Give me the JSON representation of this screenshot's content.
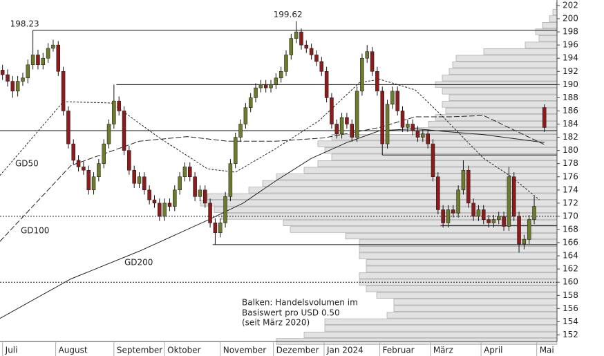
{
  "chart_data": {
    "type": "candlestick",
    "xlim": [
      -1,
      219
    ],
    "ylim": [
      151,
      203
    ],
    "yticks": [
      152,
      154,
      156,
      158,
      160,
      162,
      164,
      166,
      168,
      170,
      172,
      174,
      176,
      178,
      180,
      182,
      184,
      186,
      188,
      190,
      192,
      194,
      196,
      198,
      200,
      202
    ],
    "xticks": [
      {
        "value": 0,
        "label": "Juli"
      },
      {
        "value": 21,
        "label": "August"
      },
      {
        "value": 44,
        "label": "September"
      },
      {
        "value": 64,
        "label": "Oktober"
      },
      {
        "value": 86,
        "label": "November"
      },
      {
        "value": 107,
        "label": "Dezember"
      },
      {
        "value": 127,
        "label": "Jan 2024"
      },
      {
        "value": 149,
        "label": "Februar"
      },
      {
        "value": 169,
        "label": "März"
      },
      {
        "value": 189,
        "label": "April"
      },
      {
        "value": 211,
        "label": "Mai"
      }
    ],
    "up_color": "#6e7a2c",
    "down_color": "#8c1c1c",
    "x": [
      0,
      2,
      4,
      6,
      8,
      10,
      12,
      14,
      16,
      18,
      20,
      22,
      24,
      26,
      28,
      30,
      32,
      34,
      36,
      38,
      40,
      42,
      44,
      46,
      48,
      50,
      52,
      54,
      56,
      58,
      60,
      62,
      64,
      66,
      68,
      70,
      72,
      74,
      76,
      78,
      80,
      82,
      84,
      86,
      88,
      90,
      92,
      94,
      96,
      98,
      100,
      102,
      104,
      106,
      108,
      110,
      112,
      114,
      116,
      118,
      120,
      122,
      124,
      126,
      128,
      130,
      132,
      134,
      136,
      138,
      140,
      142,
      144,
      146,
      148,
      150,
      152,
      154,
      156,
      158,
      160,
      162,
      164,
      166,
      168,
      170,
      172,
      174,
      176,
      178,
      180,
      182,
      184,
      186,
      188,
      190,
      192,
      194,
      196,
      198,
      200,
      202,
      204,
      206,
      208,
      210,
      214
    ],
    "open": [
      192.2,
      191.5,
      190.5,
      189,
      190.5,
      191,
      193,
      194.5,
      193,
      194,
      195.5,
      196,
      192,
      186,
      181,
      178.5,
      177.5,
      177,
      174,
      176,
      178,
      181,
      184,
      187.5,
      186,
      180,
      177,
      175,
      176,
      174,
      172.5,
      172,
      170,
      172,
      171.5,
      174,
      176,
      177.5,
      176,
      173,
      174,
      172,
      169,
      167.5,
      169,
      173,
      178,
      182,
      184,
      186.5,
      188,
      189.5,
      190,
      189.5,
      190,
      191,
      192,
      194.5,
      197,
      198,
      196,
      195.5,
      194.5,
      193.5,
      192,
      188,
      184,
      182.5,
      185,
      184,
      182,
      189,
      194,
      195,
      192,
      189,
      181,
      187,
      189,
      186,
      183.5,
      184,
      183,
      182,
      182.5,
      181,
      176,
      171,
      169,
      171,
      170.5,
      174,
      177,
      172,
      170,
      171,
      169.5,
      169,
      169.5,
      170,
      168.5,
      176,
      170,
      165.8,
      166.5,
      169.5,
      186.5
    ],
    "high": [
      193,
      192.3,
      191.3,
      191.3,
      191.8,
      193.8,
      198.23,
      195.3,
      194.8,
      196.3,
      196.8,
      196.6,
      192.7,
      186.7,
      181.7,
      179.3,
      178.3,
      177.7,
      176.7,
      178.7,
      181.7,
      184.7,
      190,
      188.2,
      186.7,
      180.7,
      177.7,
      176.7,
      176.7,
      174.7,
      173.2,
      172.7,
      172.7,
      172.7,
      174.7,
      176.7,
      178.2,
      178.2,
      176.7,
      174.7,
      174.7,
      172.7,
      169.7,
      169.7,
      173.7,
      178.7,
      182.7,
      184.7,
      187.2,
      188.7,
      190.2,
      190.7,
      190.7,
      190.7,
      191.7,
      192.7,
      195.2,
      197.7,
      199.62,
      198.5,
      196.7,
      196.2,
      195.2,
      194.2,
      192.7,
      188.7,
      184.7,
      185.7,
      185.7,
      184.7,
      189.7,
      194.7,
      196,
      195.7,
      192.7,
      189.7,
      187.7,
      189.7,
      189.7,
      186.7,
      184.7,
      184.7,
      183.7,
      183.2,
      183.2,
      181.7,
      176.7,
      171.7,
      171.7,
      171.7,
      174.7,
      178.5,
      177.7,
      172.7,
      171.7,
      171.7,
      170.2,
      170.2,
      170.7,
      170.7,
      177.5,
      176.7,
      170.7,
      167.2,
      170.2,
      173,
      187
    ],
    "low": [
      190.7,
      189.7,
      188,
      188.2,
      189.8,
      190.2,
      192.3,
      192.3,
      192.3,
      193.3,
      195,
      191.3,
      185.3,
      180.3,
      177.8,
      176.8,
      176.3,
      173.3,
      173.3,
      175.3,
      177.3,
      180.3,
      183.3,
      185.3,
      179.3,
      176.3,
      174.3,
      174.3,
      173.3,
      171.8,
      171.3,
      169.3,
      169.3,
      170.8,
      170.8,
      173.3,
      175.3,
      175.3,
      172.3,
      172.3,
      171.3,
      168.3,
      165.7,
      166.8,
      168.3,
      172.3,
      177.3,
      181.3,
      183.3,
      185.8,
      187.3,
      188.8,
      188.8,
      188.8,
      189.3,
      190.3,
      191.3,
      193.8,
      196.3,
      195.3,
      194.8,
      193.8,
      192.8,
      191.3,
      187.3,
      183.3,
      181.8,
      181.8,
      183.3,
      181.3,
      181.3,
      188.3,
      193.3,
      191.3,
      188.3,
      179.3,
      180.3,
      186.3,
      185.3,
      182.8,
      182.8,
      182.3,
      181.3,
      181.3,
      180.3,
      175.3,
      170.3,
      168.3,
      168.3,
      169.8,
      169.8,
      173.3,
      171.3,
      169.3,
      169.3,
      168.8,
      168.3,
      168.3,
      168.8,
      167.8,
      167.8,
      169.3,
      164.5,
      165,
      165.8,
      168.8,
      182.8
    ],
    "close": [
      191.5,
      190.5,
      189,
      190.5,
      191,
      193,
      194.5,
      193,
      194,
      195.5,
      196,
      192,
      186,
      181,
      178.5,
      177.5,
      177,
      174,
      176,
      178,
      181,
      184,
      187.5,
      186,
      180,
      177,
      175,
      176,
      174,
      172.5,
      172,
      170,
      172,
      171.5,
      174,
      176,
      177.5,
      176,
      173,
      174,
      172,
      169,
      167.5,
      169,
      173,
      178,
      182,
      184,
      186.5,
      188,
      189.5,
      190,
      189.5,
      190,
      191,
      192,
      194.5,
      197,
      198,
      196,
      195.5,
      194.5,
      193.5,
      192,
      188,
      184,
      182.5,
      185,
      184,
      182,
      189,
      194,
      195,
      192,
      189,
      181,
      187,
      189,
      186,
      183.5,
      184,
      183,
      182,
      182.5,
      181,
      176,
      171,
      169,
      171,
      170.5,
      174,
      177,
      172,
      170,
      171,
      169.5,
      169,
      169.5,
      170,
      168.5,
      176,
      170,
      165.8,
      166.5,
      169.5,
      171.5,
      183.5
    ],
    "moving_averages": [
      {
        "name": "GD50",
        "color": "#222222",
        "dash": "3,2",
        "x": [
          -1,
          24,
          43,
          62,
          81,
          92,
          108,
          125,
          141,
          149,
          163,
          174,
          190,
          201,
          212
        ],
        "values": [
          176.2,
          187.4,
          187.2,
          181.9,
          177.2,
          176.7,
          180.3,
          184.5,
          190.3,
          190.8,
          189.2,
          185.1,
          178.8,
          176,
          172.5
        ]
      },
      {
        "name": "GD100",
        "color": "#222222",
        "dash": "8,3",
        "x": [
          -1,
          27,
          54,
          73,
          89,
          108,
          127,
          149,
          163,
          177,
          190,
          214
        ],
        "values": [
          166.2,
          177.7,
          181.4,
          182.1,
          181.4,
          181.4,
          181.9,
          183.5,
          185.1,
          185.1,
          185.3,
          180.9
        ]
      },
      {
        "name": "GD200",
        "color": "#222222",
        "dash": "none",
        "x": [
          -1,
          27,
          54,
          81,
          95,
          108,
          122,
          136,
          149,
          163,
          177,
          190,
          214
        ],
        "values": [
          154.5,
          160.5,
          164.7,
          169.4,
          172,
          175.4,
          178.8,
          181.2,
          183,
          183.3,
          182.8,
          182.4,
          181.2
        ]
      }
    ],
    "levels": [
      {
        "value": 198.23,
        "from": 12
      },
      {
        "value": 190,
        "from": 45
      },
      {
        "value": 183,
        "from": -1
      },
      {
        "value": 179.3,
        "from": 150
      },
      {
        "value": 168.6,
        "from": 173
      },
      {
        "value": 165.7,
        "from": 83
      }
    ],
    "dotted_levels": [
      170,
      160
    ],
    "peaks": [
      {
        "x": 12,
        "value": 198.23
      },
      {
        "x": 116,
        "value": 199.62
      }
    ],
    "volume_profile": {
      "levels": [
        151,
        152,
        153,
        154,
        155,
        156,
        157,
        158,
        159,
        160,
        161,
        162,
        163,
        164,
        165,
        166,
        167,
        168,
        169,
        170,
        171,
        172,
        173,
        174,
        175,
        176,
        177,
        178,
        179,
        180,
        181,
        182,
        183,
        184,
        185,
        186,
        187,
        188,
        189,
        190,
        191,
        192,
        193,
        194,
        195,
        196,
        197,
        198,
        199,
        200,
        201,
        202
      ],
      "values": [
        406,
        366,
        336,
        336,
        246,
        236,
        236,
        261,
        276,
        286,
        286,
        276,
        276,
        286,
        286,
        286,
        306,
        386,
        396,
        486,
        496,
        516,
        506,
        446,
        426,
        406,
        366,
        346,
        326,
        336,
        346,
        326,
        206,
        186,
        176,
        161,
        166,
        156,
        166,
        176,
        166,
        156,
        151,
        146,
        106,
        46,
        26,
        31,
        21,
        11,
        6,
        1
      ],
      "note": [
        "Balken: Handelsvolumen im",
        "Basiswert pro USD 0.50",
        "(seit März 2020)"
      ]
    }
  }
}
